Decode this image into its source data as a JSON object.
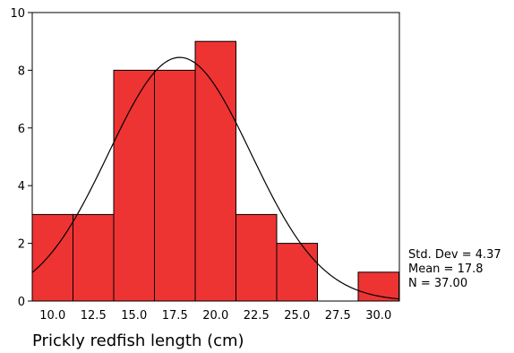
{
  "chart_data": {
    "type": "bar",
    "subtype": "histogram",
    "xlabel": "Prickly redfish length (cm)",
    "ylabel": "",
    "title": "",
    "categories": [
      "10.0",
      "12.5",
      "15.0",
      "17.5",
      "20.0",
      "22.5",
      "25.0",
      "27.5",
      "30.0"
    ],
    "values": [
      3,
      3,
      8,
      8,
      9,
      3,
      2,
      0,
      1
    ],
    "bin_width": 2.5,
    "ylim": [
      0,
      10
    ],
    "yticks": [
      0,
      2,
      4,
      6,
      8,
      10
    ],
    "grid": false,
    "bar_color": "#EE3333",
    "normal_curve": {
      "mean": 17.8,
      "std_dev": 4.37,
      "n": 37
    }
  },
  "stats": {
    "std_dev": "Std. Dev = 4.37",
    "mean": "Mean = 17.8",
    "n": "N = 37.00"
  }
}
